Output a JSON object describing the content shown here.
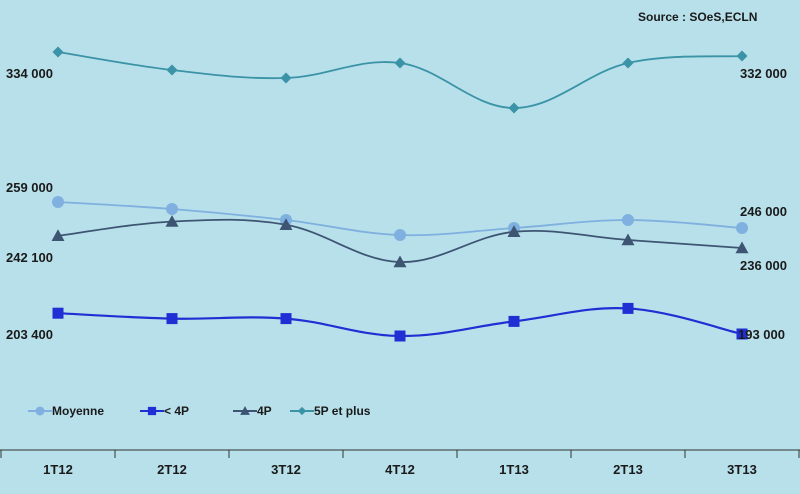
{
  "chart_data": {
    "type": "line",
    "source": "Source : SOeS,ECLN",
    "categories": [
      "1T12",
      "2T12",
      "3T12",
      "4T12",
      "1T13",
      "2T13",
      "3T13"
    ],
    "ylim": [
      165000,
      345000
    ],
    "series": [
      {
        "name": "Moyenne",
        "color": "#7fb0df",
        "marker": "circle",
        "values": [
          259000,
          255500,
          250000,
          242500,
          246000,
          250000,
          246000
        ]
      },
      {
        "name": "< 4P",
        "color": "#1f2fd4",
        "marker": "square",
        "values": [
          203400,
          200700,
          200700,
          192000,
          199300,
          205800,
          193000
        ]
      },
      {
        "name": "4P",
        "color": "#3d5573",
        "marker": "triangle",
        "values": [
          242100,
          249200,
          247600,
          229000,
          244100,
          240000,
          236000
        ]
      },
      {
        "name": "5P et plus",
        "color": "#3a93a6",
        "marker": "diamond",
        "values": [
          334000,
          325000,
          321000,
          328500,
          306000,
          328500,
          332000
        ]
      }
    ],
    "data_labels": [
      {
        "text": "334 000",
        "series": 3,
        "index": 0,
        "pos": "below-left"
      },
      {
        "text": "332 000",
        "series": 3,
        "index": 6,
        "pos": "below-right"
      },
      {
        "text": "259 000",
        "series": 0,
        "index": 0,
        "pos": "above-left"
      },
      {
        "text": "246 000",
        "series": 0,
        "index": 6,
        "pos": "above-right"
      },
      {
        "text": "242 100",
        "series": 2,
        "index": 0,
        "pos": "below-left"
      },
      {
        "text": "236 000",
        "series": 2,
        "index": 6,
        "pos": "below-right"
      },
      {
        "text": "203 400",
        "series": 1,
        "index": 0,
        "pos": "below-left"
      },
      {
        "text": "193 000",
        "series": 1,
        "index": 6,
        "pos": "right"
      }
    ],
    "legend_position": "bottom-left",
    "grid": false
  }
}
